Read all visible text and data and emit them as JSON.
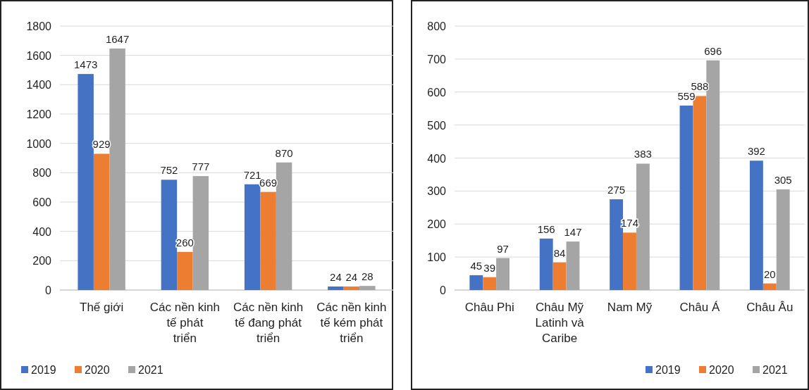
{
  "chart_data": [
    {
      "type": "bar",
      "categories": [
        "Thế giới",
        "Các nền kinh tế phát triển",
        "Các nền kinh tế đang phát triển",
        "Các nền kinh tế kém phát triển"
      ],
      "series": [
        {
          "name": "2019",
          "color": "#4472c4",
          "values": [
            1473,
            752,
            721,
            24
          ]
        },
        {
          "name": "2020",
          "color": "#ed7d31",
          "values": [
            929,
            260,
            669,
            24
          ]
        },
        {
          "name": "2021",
          "color": "#a5a5a5",
          "values": [
            1647,
            777,
            870,
            28
          ]
        }
      ],
      "ylim": [
        0,
        1800
      ],
      "yticks": [
        0,
        200,
        400,
        600,
        800,
        1000,
        1200,
        1400,
        1600,
        1800
      ],
      "grid": "y",
      "legend": "bottom left",
      "data_labels": true
    },
    {
      "type": "bar",
      "categories": [
        "Châu Phi",
        "Châu Mỹ Latinh và Caribe",
        "Nam Mỹ",
        "Châu Á",
        "Châu Âu"
      ],
      "series": [
        {
          "name": "2019",
          "color": "#4472c4",
          "values": [
            45,
            156,
            275,
            559,
            392
          ]
        },
        {
          "name": "2020",
          "color": "#ed7d31",
          "values": [
            39,
            84,
            174,
            588,
            20
          ]
        },
        {
          "name": "2021",
          "color": "#a5a5a5",
          "values": [
            97,
            147,
            383,
            696,
            305
          ]
        }
      ],
      "ylim": [
        0,
        800
      ],
      "yticks": [
        0,
        100,
        200,
        300,
        400,
        500,
        600,
        700,
        800
      ],
      "grid": "y",
      "legend": "bottom right",
      "data_labels": true
    }
  ]
}
